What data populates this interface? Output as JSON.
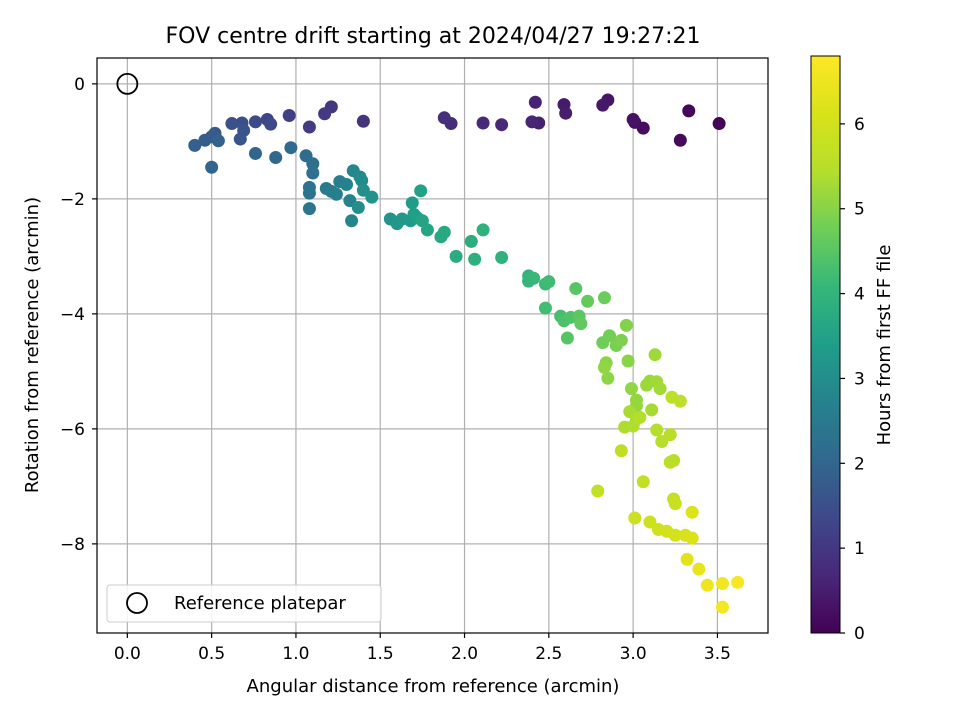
{
  "chart_data": {
    "type": "scatter",
    "title": "FOV centre drift starting at 2024/04/27 19:27:21",
    "xlabel": "Angular distance from reference (arcmin)",
    "ylabel": "Rotation from reference (arcmin)",
    "xlim": [
      -0.18,
      3.8
    ],
    "ylim": [
      -9.55,
      0.45
    ],
    "xticks": [
      0.0,
      0.5,
      1.0,
      1.5,
      2.0,
      2.5,
      3.0,
      3.5
    ],
    "xtick_labels": [
      "0.0",
      "0.5",
      "1.0",
      "1.5",
      "2.0",
      "2.5",
      "3.0",
      "3.5"
    ],
    "yticks": [
      0,
      -2,
      -4,
      -6,
      -8
    ],
    "ytick_labels": [
      "0",
      "−2",
      "−4",
      "−6",
      "−8"
    ],
    "grid": true,
    "colormap": "viridis",
    "colorbar": {
      "label": "Hours from first FF file",
      "range": [
        0,
        6.8
      ],
      "ticks": [
        0,
        1,
        2,
        3,
        4,
        5,
        6
      ],
      "tick_labels": [
        "0",
        "1",
        "2",
        "3",
        "4",
        "5",
        "6"
      ]
    },
    "legend": {
      "position": "lower-left",
      "entries": [
        "Reference platepar"
      ]
    },
    "reference_point": {
      "x": 0.0,
      "y": 0.0
    },
    "points": [
      [
        3.51,
        -0.69,
        0.05
      ],
      [
        3.33,
        -0.47,
        0.1
      ],
      [
        3.28,
        -0.98,
        0.15
      ],
      [
        3.06,
        -0.77,
        0.2
      ],
      [
        3.01,
        -0.67,
        0.25
      ],
      [
        3.0,
        -0.62,
        0.3
      ],
      [
        2.85,
        -0.28,
        0.35
      ],
      [
        2.82,
        -0.37,
        0.4
      ],
      [
        2.59,
        -0.36,
        0.45
      ],
      [
        2.6,
        -0.51,
        0.5
      ],
      [
        2.44,
        -0.68,
        0.55
      ],
      [
        2.42,
        -0.32,
        0.6
      ],
      [
        2.4,
        -0.66,
        0.65
      ],
      [
        2.22,
        -0.71,
        0.7
      ],
      [
        2.11,
        -0.68,
        0.75
      ],
      [
        1.92,
        -0.69,
        0.8
      ],
      [
        1.88,
        -0.59,
        0.85
      ],
      [
        1.4,
        -0.65,
        0.9
      ],
      [
        1.21,
        -0.4,
        1.0
      ],
      [
        1.17,
        -0.52,
        1.05
      ],
      [
        1.08,
        -0.75,
        1.1
      ],
      [
        0.96,
        -0.55,
        1.2
      ],
      [
        0.83,
        -0.62,
        1.3
      ],
      [
        0.85,
        -0.7,
        1.35
      ],
      [
        0.76,
        -0.66,
        1.4
      ],
      [
        0.68,
        -0.68,
        1.5
      ],
      [
        0.62,
        -0.69,
        1.55
      ],
      [
        0.69,
        -0.81,
        1.6
      ],
      [
        0.67,
        -0.96,
        1.65
      ],
      [
        0.52,
        -0.86,
        1.7
      ],
      [
        0.5,
        -0.92,
        1.75
      ],
      [
        0.46,
        -0.98,
        1.8
      ],
      [
        0.4,
        -1.07,
        1.85
      ],
      [
        0.54,
        -0.99,
        1.9
      ],
      [
        0.5,
        -1.45,
        1.95
      ],
      [
        0.76,
        -1.21,
        2.0
      ],
      [
        0.88,
        -1.28,
        2.05
      ],
      [
        0.97,
        -1.11,
        2.1
      ],
      [
        1.06,
        -1.25,
        2.15
      ],
      [
        1.1,
        -1.39,
        2.2
      ],
      [
        1.1,
        -1.55,
        2.25
      ],
      [
        1.08,
        -1.8,
        2.3
      ],
      [
        1.08,
        -1.9,
        2.35
      ],
      [
        1.08,
        -2.17,
        2.4
      ],
      [
        1.18,
        -1.82,
        2.5
      ],
      [
        1.21,
        -1.87,
        2.55
      ],
      [
        1.26,
        -1.7,
        2.6
      ],
      [
        1.24,
        -1.92,
        2.65
      ],
      [
        1.3,
        -1.75,
        2.7
      ],
      [
        1.32,
        -2.03,
        2.75
      ],
      [
        1.33,
        -2.38,
        2.8
      ],
      [
        1.34,
        -1.51,
        2.85
      ],
      [
        1.38,
        -1.62,
        2.9
      ],
      [
        1.39,
        -1.68,
        2.95
      ],
      [
        1.37,
        -2.15,
        3.0
      ],
      [
        1.4,
        -1.85,
        3.05
      ],
      [
        1.45,
        -1.97,
        3.1
      ],
      [
        1.56,
        -2.35,
        3.15
      ],
      [
        1.6,
        -2.43,
        3.2
      ],
      [
        1.63,
        -2.35,
        3.25
      ],
      [
        1.68,
        -2.38,
        3.3
      ],
      [
        1.69,
        -2.07,
        3.35
      ],
      [
        1.7,
        -2.27,
        3.4
      ],
      [
        1.72,
        -2.33,
        3.45
      ],
      [
        1.74,
        -1.86,
        3.5
      ],
      [
        1.75,
        -2.38,
        3.55
      ],
      [
        1.78,
        -2.54,
        3.6
      ],
      [
        1.86,
        -2.66,
        3.65
      ],
      [
        1.88,
        -2.58,
        3.7
      ],
      [
        1.95,
        -3.0,
        3.75
      ],
      [
        2.04,
        -2.74,
        3.8
      ],
      [
        2.06,
        -3.05,
        3.85
      ],
      [
        2.11,
        -2.54,
        3.9
      ],
      [
        2.22,
        -3.02,
        3.95
      ],
      [
        2.38,
        -3.34,
        4.0
      ],
      [
        2.38,
        -3.43,
        4.05
      ],
      [
        2.41,
        -3.38,
        4.1
      ],
      [
        2.48,
        -3.48,
        4.15
      ],
      [
        2.5,
        -3.44,
        4.2
      ],
      [
        2.48,
        -3.9,
        4.25
      ],
      [
        2.57,
        -4.04,
        4.3
      ],
      [
        2.59,
        -4.12,
        4.35
      ],
      [
        2.63,
        -4.06,
        4.4
      ],
      [
        2.61,
        -4.42,
        4.45
      ],
      [
        2.66,
        -3.56,
        4.5
      ],
      [
        2.68,
        -4.04,
        4.55
      ],
      [
        2.69,
        -4.17,
        4.6
      ],
      [
        2.73,
        -3.78,
        4.65
      ],
      [
        2.83,
        -3.72,
        4.7
      ],
      [
        2.82,
        -4.5,
        4.75
      ],
      [
        2.86,
        -4.38,
        4.8
      ],
      [
        2.9,
        -4.55,
        4.85
      ],
      [
        2.93,
        -4.46,
        4.9
      ],
      [
        2.96,
        -4.2,
        4.95
      ],
      [
        2.97,
        -4.82,
        5.0
      ],
      [
        2.84,
        -4.85,
        5.02
      ],
      [
        2.85,
        -5.12,
        5.05
      ],
      [
        2.83,
        -4.93,
        5.08
      ],
      [
        2.99,
        -5.3,
        5.1
      ],
      [
        3.02,
        -5.5,
        5.12
      ],
      [
        3.02,
        -5.6,
        5.15
      ],
      [
        3.08,
        -5.24,
        5.18
      ],
      [
        3.1,
        -5.17,
        5.2
      ],
      [
        3.13,
        -4.71,
        5.22
      ],
      [
        3.14,
        -5.18,
        5.25
      ],
      [
        3.16,
        -5.3,
        5.28
      ],
      [
        3.11,
        -5.67,
        5.3
      ],
      [
        2.98,
        -5.7,
        5.32
      ],
      [
        3.02,
        -5.83,
        5.35
      ],
      [
        2.95,
        -5.97,
        5.38
      ],
      [
        3.0,
        -5.95,
        5.4
      ],
      [
        3.04,
        -5.8,
        5.42
      ],
      [
        3.14,
        -6.02,
        5.45
      ],
      [
        3.17,
        -6.22,
        5.48
      ],
      [
        3.22,
        -6.1,
        5.5
      ],
      [
        3.24,
        -6.55,
        5.52
      ],
      [
        3.22,
        -6.58,
        5.55
      ],
      [
        3.23,
        -5.45,
        5.58
      ],
      [
        3.28,
        -5.52,
        5.6
      ],
      [
        2.93,
        -6.38,
        5.62
      ],
      [
        3.06,
        -6.92,
        5.65
      ],
      [
        2.79,
        -7.08,
        5.7
      ],
      [
        3.24,
        -7.22,
        5.75
      ],
      [
        3.25,
        -7.3,
        5.8
      ],
      [
        3.01,
        -7.55,
        5.85
      ],
      [
        3.1,
        -7.62,
        5.9
      ],
      [
        3.15,
        -7.75,
        5.95
      ],
      [
        3.2,
        -7.78,
        6.0
      ],
      [
        3.25,
        -7.85,
        6.05
      ],
      [
        3.31,
        -7.85,
        6.1
      ],
      [
        3.35,
        -7.9,
        6.15
      ],
      [
        3.35,
        -7.45,
        6.2
      ],
      [
        3.32,
        -8.27,
        6.3
      ],
      [
        3.39,
        -8.44,
        6.4
      ],
      [
        3.44,
        -8.72,
        6.5
      ],
      [
        3.53,
        -8.69,
        6.6
      ],
      [
        3.53,
        -9.1,
        6.65
      ],
      [
        3.62,
        -8.67,
        6.7
      ]
    ]
  }
}
